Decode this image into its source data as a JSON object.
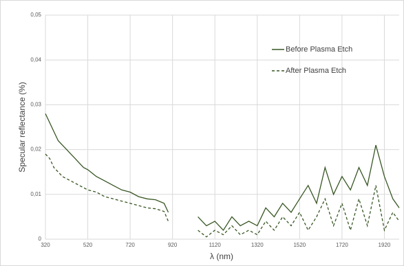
{
  "chart_data": {
    "type": "line",
    "y_label": "Specular reflectance (%)",
    "x_label": "λ (nm)",
    "x": [
      320,
      340,
      360,
      380,
      400,
      420,
      440,
      460,
      480,
      500,
      520,
      560,
      600,
      640,
      680,
      720,
      760,
      800,
      840,
      880,
      900,
      920,
      1040,
      1080,
      1120,
      1160,
      1200,
      1240,
      1280,
      1320,
      1360,
      1400,
      1440,
      1480,
      1520,
      1560,
      1600,
      1640,
      1680,
      1720,
      1760,
      1800,
      1840,
      1880,
      1920,
      1960,
      1990
    ],
    "series": [
      {
        "name": "Before Plasma Etch",
        "color": "#375623",
        "style": "solid",
        "values": [
          0.028,
          0.026,
          0.024,
          0.022,
          0.021,
          0.02,
          0.019,
          0.018,
          0.017,
          0.016,
          0.0155,
          0.014,
          0.013,
          0.012,
          0.011,
          0.0105,
          0.0095,
          0.009,
          0.0088,
          0.008,
          0.006,
          null,
          0.005,
          0.003,
          0.004,
          0.002,
          0.005,
          0.003,
          0.004,
          0.003,
          0.007,
          0.005,
          0.008,
          0.006,
          0.009,
          0.012,
          0.008,
          0.016,
          0.01,
          0.014,
          0.011,
          0.016,
          0.012,
          0.021,
          0.014,
          0.009,
          0.007
        ]
      },
      {
        "name": "After Plasma Etch",
        "color": "#375623",
        "style": "dashed",
        "values": [
          0.019,
          0.018,
          0.016,
          0.015,
          0.014,
          0.0135,
          0.013,
          0.0125,
          0.012,
          0.0115,
          0.011,
          0.0105,
          0.0095,
          0.009,
          0.0085,
          0.008,
          0.0075,
          0.007,
          0.0068,
          0.0062,
          0.004,
          null,
          0.002,
          0.0005,
          0.002,
          0.001,
          0.003,
          0.001,
          0.002,
          0.001,
          0.004,
          0.002,
          0.005,
          0.003,
          0.006,
          0.002,
          0.005,
          0.009,
          0.003,
          0.008,
          0.002,
          0.009,
          0.003,
          0.012,
          0.002,
          0.006,
          0.004
        ]
      }
    ],
    "xlim": [
      320,
      1990
    ],
    "xticks": [
      320,
      520,
      720,
      920,
      1120,
      1320,
      1520,
      1720,
      1920
    ],
    "ylim": [
      0,
      0.05
    ],
    "yticks": [
      0,
      {
        "value": 0.01,
        "label": "0,01"
      },
      {
        "value": 0.02,
        "label": "0,02"
      },
      {
        "value": 0.03,
        "label": "0,03"
      },
      {
        "value": 0.04,
        "label": "0,04"
      },
      {
        "value": 0.05,
        "label": "0,05"
      }
    ],
    "grid": true,
    "legend": "upper-right"
  }
}
